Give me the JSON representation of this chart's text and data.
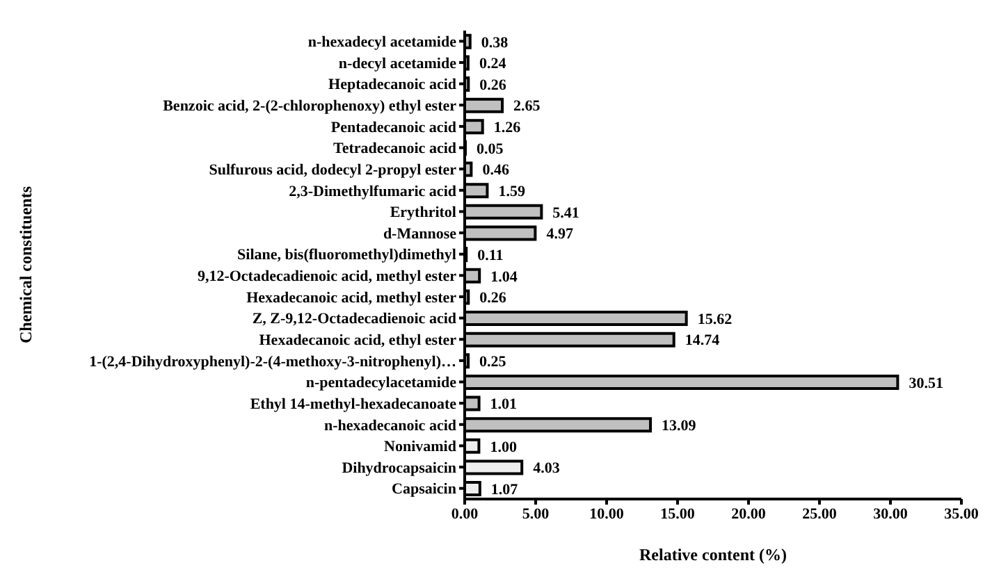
{
  "chart_data": {
    "type": "bar",
    "orientation": "horizontal",
    "xlabel": "Relative content (%)",
    "ylabel": "Chemical constituents",
    "categories": [
      "n-hexadecyl acetamide",
      "n-decyl acetamide",
      "Heptadecanoic acid",
      "Benzoic acid, 2-(2-chlorophenoxy) ethyl ester",
      "Pentadecanoic acid",
      "Tetradecanoic acid",
      "Sulfurous acid, dodecyl 2-propyl ester",
      "2,3-Dimethylfumaric acid",
      "Erythritol",
      "d-Mannose",
      "Silane, bis(fluoromethyl)dimethyl",
      "9,12-Octadecadienoic acid, methyl ester",
      "Hexadecanoic acid, methyl ester",
      "Z, Z-9,12-Octadecadienoic acid",
      "Hexadecanoic acid, ethyl ester",
      "1-(2,4-Dihydroxyphenyl)-2-(4-methoxy-3-nitrophenyl)…",
      "n-pentadecylacetamide",
      "Ethyl 14-methyl-hexadecanoate",
      "n-hexadecanoic acid",
      "Nonivamid",
      "Dihydrocapsaicin",
      "Capsaicin"
    ],
    "values": [
      0.38,
      0.24,
      0.26,
      2.65,
      1.26,
      0.05,
      0.46,
      1.59,
      5.41,
      4.97,
      0.11,
      1.04,
      0.26,
      15.62,
      14.74,
      0.25,
      30.51,
      1.01,
      13.09,
      1.0,
      4.03,
      1.07
    ],
    "value_labels": [
      "0.38",
      "0.24",
      "0.26",
      "2.65",
      "1.26",
      "0.05",
      "0.46",
      "1.59",
      "5.41",
      "4.97",
      "0.11",
      "1.04",
      "0.26",
      "15.62",
      "14.74",
      "0.25",
      "30.51",
      "1.01",
      "13.09",
      "1.00",
      "4.03",
      "1.07"
    ],
    "colors": [
      "#c0c0c0",
      "#c0c0c0",
      "#c0c0c0",
      "#c0c0c0",
      "#c0c0c0",
      "#c0c0c0",
      "#c0c0c0",
      "#c0c0c0",
      "#c0c0c0",
      "#c0c0c0",
      "#c0c0c0",
      "#c0c0c0",
      "#c0c0c0",
      "#c0c0c0",
      "#c0c0c0",
      "#c0c0c0",
      "#c0c0c0",
      "#c0c0c0",
      "#c0c0c0",
      "#eeeeee",
      "#eeeeee",
      "#eeeeee"
    ],
    "xlim": [
      0,
      35
    ],
    "xticks": [
      {
        "value": 0,
        "label": "0.00"
      },
      {
        "value": 5,
        "label": "5.00"
      },
      {
        "value": 10,
        "label": "10.00"
      },
      {
        "value": 15,
        "label": "15.00"
      },
      {
        "value": 20,
        "label": "20.00"
      },
      {
        "value": 25,
        "label": "25.00"
      },
      {
        "value": 30,
        "label": "30.00"
      },
      {
        "value": 35,
        "label": "35.00"
      }
    ],
    "grid": false,
    "legend": false
  }
}
